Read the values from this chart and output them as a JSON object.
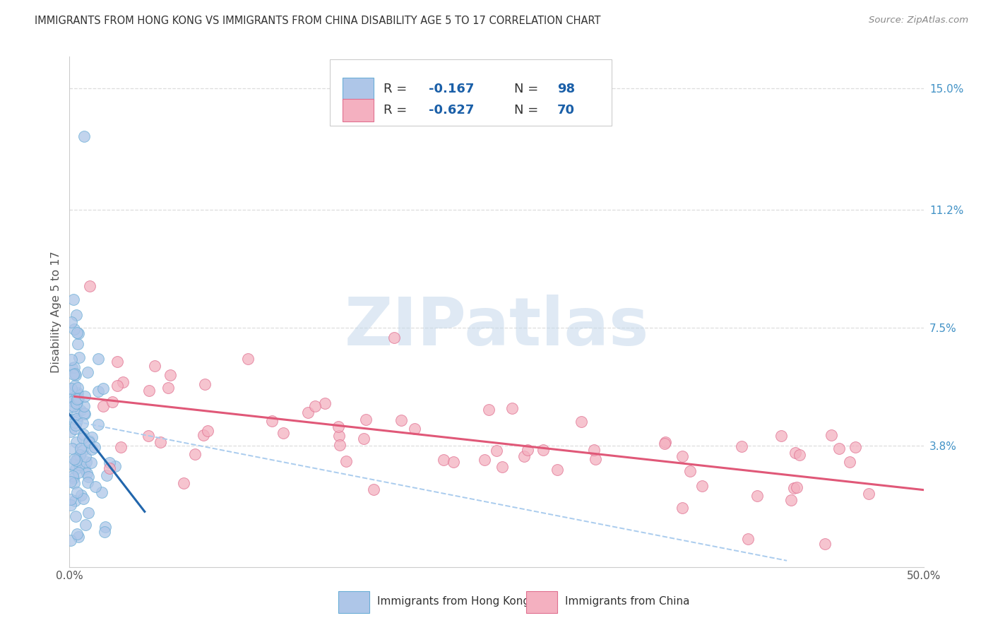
{
  "title": "IMMIGRANTS FROM HONG KONG VS IMMIGRANTS FROM CHINA DISABILITY AGE 5 TO 17 CORRELATION CHART",
  "source": "Source: ZipAtlas.com",
  "ylabel": "Disability Age 5 to 17",
  "xlim": [
    0.0,
    0.5
  ],
  "ylim": [
    0.0,
    0.16
  ],
  "xtick_labels": [
    "0.0%",
    "",
    "",
    "",
    "50.0%"
  ],
  "xtick_vals": [
    0.0,
    0.125,
    0.25,
    0.375,
    0.5
  ],
  "right_ytick_labels": [
    "3.8%",
    "7.5%",
    "11.2%",
    "15.0%"
  ],
  "right_ytick_vals": [
    0.038,
    0.075,
    0.112,
    0.15
  ],
  "hk_color_fill": "#aec6e8",
  "hk_color_edge": "#6baed6",
  "china_color_fill": "#f4b0c0",
  "china_color_edge": "#e07090",
  "line_hk_color": "#2166ac",
  "line_china_color": "#e05878",
  "line_dash_color": "#aaccee",
  "watermark_text": "ZIPatlas",
  "watermark_color": "#c5d8eb",
  "legend_R1": "-0.167",
  "legend_N1": "98",
  "legend_R2": "-0.627",
  "legend_N2": "70",
  "legend_color_text": "#1a5fa8",
  "legend_box_color": "#cccccc",
  "title_color": "#333333",
  "source_color": "#888888",
  "ytick_color": "#4292c6",
  "xtick_color": "#555555",
  "ylabel_color": "#555555",
  "grid_color": "#dddddd",
  "bottom_label1": "Immigrants from Hong Kong",
  "bottom_label2": "Immigrants from China"
}
